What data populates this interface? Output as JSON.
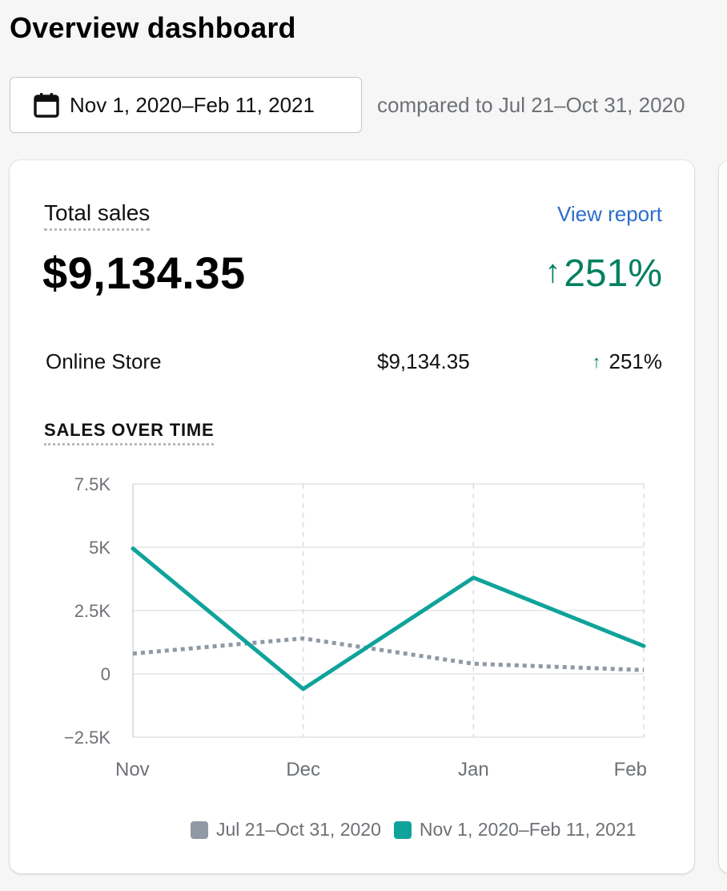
{
  "header": {
    "title": "Overview dashboard"
  },
  "date_range": {
    "icon": "calendar-icon",
    "label": "Nov 1, 2020–Feb 11, 2021",
    "comparison": "compared to Jul 21–Oct 31, 2020"
  },
  "card": {
    "title": "Total sales",
    "view_report_label": "View report",
    "total_amount": "$9,134.35",
    "change_arrow": "↑",
    "change_value": "251%",
    "breakdown": [
      {
        "name": "Online Store",
        "value": "$9,134.35",
        "change_arrow": "↑",
        "change_value": "251%"
      }
    ],
    "chart_heading": "SALES OVER TIME"
  },
  "colors": {
    "accent_green": "#008060",
    "link_blue": "#2c6ecb",
    "series_current": "#0fa39a",
    "series_previous": "#9099a4"
  },
  "chart_data": {
    "type": "line",
    "title": "",
    "xlabel": "",
    "ylabel": "",
    "categories": [
      "Nov",
      "Dec",
      "Jan",
      "Feb"
    ],
    "x": [
      0,
      1,
      2,
      3
    ],
    "ylim": [
      -2500,
      7500
    ],
    "y_ticks": [
      -2500,
      0,
      2500,
      5000,
      7500
    ],
    "y_tick_labels": [
      "−2.5K",
      "0",
      "2.5K",
      "5K",
      "7.5K"
    ],
    "x_tick_positions": [
      0,
      1,
      2,
      3
    ],
    "x_tick_labels": [
      "Nov",
      "Dec",
      "Jan",
      "Feb"
    ],
    "grid": true,
    "legend_position": "bottom-right",
    "series": [
      {
        "name": "Jul 21–Oct 31, 2020",
        "style": "dotted",
        "color": "#9099a4",
        "values": [
          800,
          1400,
          400,
          150
        ]
      },
      {
        "name": "Nov 1, 2020–Feb 11, 2021",
        "style": "solid",
        "color": "#0fa39a",
        "values": [
          4950,
          -600,
          3800,
          1100
        ]
      }
    ]
  }
}
